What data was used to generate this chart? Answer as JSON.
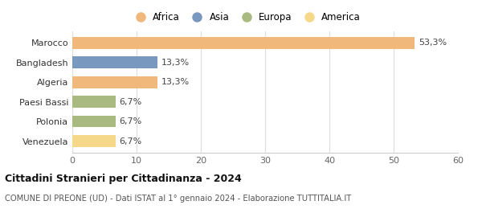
{
  "categories": [
    "Venezuela",
    "Polonia",
    "Paesi Bassi",
    "Algeria",
    "Bangladesh",
    "Marocco"
  ],
  "values": [
    6.7,
    6.7,
    6.7,
    13.3,
    13.3,
    53.3
  ],
  "labels": [
    "6,7%",
    "6,7%",
    "6,7%",
    "13,3%",
    "13,3%",
    "53,3%"
  ],
  "colors": [
    "#f5d88a",
    "#a8ba7f",
    "#a8ba7f",
    "#f0b87a",
    "#7898c0",
    "#f0b87a"
  ],
  "legend": [
    {
      "label": "Africa",
      "color": "#f0b87a"
    },
    {
      "label": "Asia",
      "color": "#7898c0"
    },
    {
      "label": "Europa",
      "color": "#a8ba7f"
    },
    {
      "label": "America",
      "color": "#f5d88a"
    }
  ],
  "xlim": [
    0,
    60
  ],
  "xticks": [
    0,
    10,
    20,
    30,
    40,
    50,
    60
  ],
  "title": "Cittadini Stranieri per Cittadinanza - 2024",
  "subtitle": "COMUNE DI PREONE (UD) - Dati ISTAT al 1° gennaio 2024 - Elaborazione TUTTITALIA.IT",
  "background_color": "#ffffff"
}
